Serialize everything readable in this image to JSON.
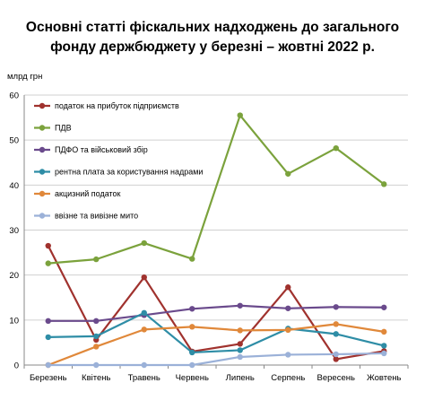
{
  "chart_data": {
    "type": "line",
    "title_line1": "Основні статті фіскальних надходжень до загального",
    "title_line2": "фонду держбюджету у березні – жовтні 2022 р.",
    "ylabel": "млрд грн",
    "ylim": [
      0,
      60
    ],
    "yticks": [
      "0",
      "10",
      "20",
      "30",
      "40",
      "50",
      "60"
    ],
    "categories": [
      "Березень",
      "Квітень",
      "Травень",
      "Червень",
      "Липень",
      "Серпень",
      "Вересень",
      "Жовтень"
    ],
    "grid": true,
    "legend_position": "top-left",
    "series": [
      {
        "name": "податок на прибуток підприємств",
        "color": "#A0322E",
        "values": [
          26.5,
          5.6,
          19.5,
          3.0,
          4.7,
          17.3,
          1.3,
          3.1
        ]
      },
      {
        "name": "ПДВ",
        "color": "#7BA23C",
        "values": [
          22.6,
          23.5,
          27.1,
          23.6,
          55.5,
          42.5,
          48.2,
          40.2
        ]
      },
      {
        "name": "ПДФО та військовий збір",
        "color": "#6A4A8C",
        "values": [
          9.8,
          9.8,
          11.1,
          12.5,
          13.2,
          12.6,
          12.9,
          12.8
        ]
      },
      {
        "name": "рентна плата за користування надрами",
        "color": "#2E8DA6",
        "values": [
          6.2,
          6.4,
          11.6,
          2.8,
          3.3,
          8.1,
          6.9,
          4.3
        ]
      },
      {
        "name": "акцизний податок",
        "color": "#E0883A",
        "values": [
          0.0,
          4.1,
          7.9,
          8.5,
          7.7,
          7.8,
          9.1,
          7.4
        ]
      },
      {
        "name": "ввізне та вивізне мито",
        "color": "#9BB1D8",
        "values": [
          0.0,
          0.0,
          0.0,
          0.0,
          1.8,
          2.3,
          2.4,
          2.6
        ]
      }
    ]
  }
}
